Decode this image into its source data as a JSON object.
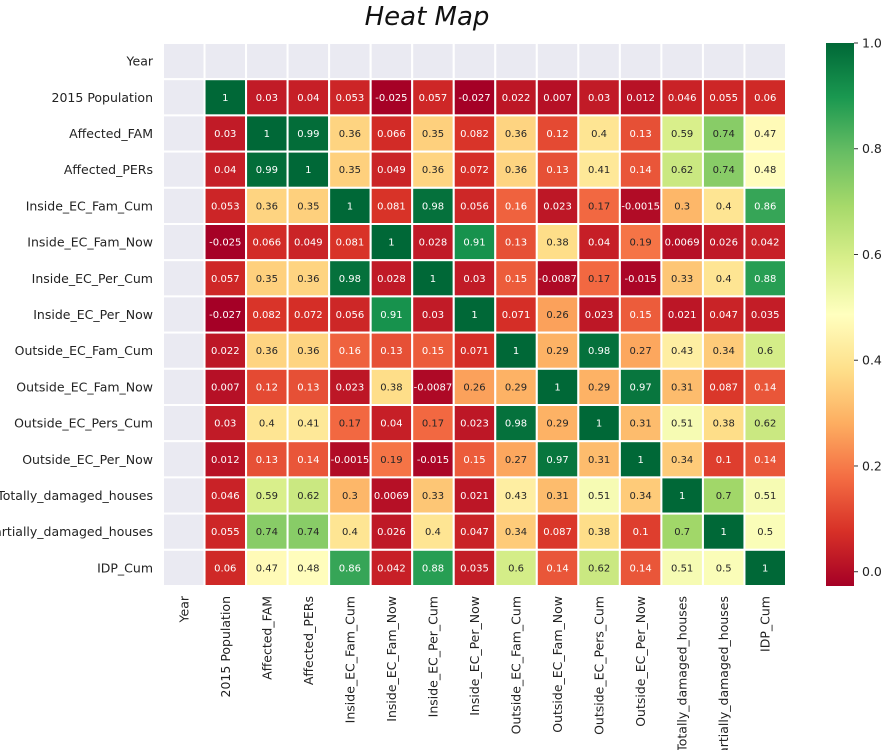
{
  "chart_data": {
    "type": "heatmap",
    "title": "Heat Map",
    "variables": [
      "Year",
      "2015 Population",
      "Affected_FAM",
      "Affected_PERs",
      "Inside_EC_Fam_Cum",
      "Inside_EC_Fam_Now",
      "Inside_EC_Per_Cum",
      "Inside_EC_Per_Now",
      "Outside_EC_Fam_Cum",
      "Outside_EC_Fam_Now",
      "Outside_EC_Pers_Cum",
      "Outside_EC_Per_Now",
      "Totally_damaged_houses",
      "Partially_damaged_houses",
      "IDP_Cum"
    ],
    "matrix": [
      [
        null,
        null,
        null,
        null,
        null,
        null,
        null,
        null,
        null,
        null,
        null,
        null,
        null,
        null,
        null
      ],
      [
        null,
        "1",
        "0.03",
        "0.04",
        "0.053",
        "-0.025",
        "0.057",
        "-0.027",
        "0.022",
        "0.007",
        "0.03",
        "0.012",
        "0.046",
        "0.055",
        "0.06"
      ],
      [
        null,
        "0.03",
        "1",
        "0.99",
        "0.36",
        "0.066",
        "0.35",
        "0.082",
        "0.36",
        "0.12",
        "0.4",
        "0.13",
        "0.59",
        "0.74",
        "0.47"
      ],
      [
        null,
        "0.04",
        "0.99",
        "1",
        "0.35",
        "0.049",
        "0.36",
        "0.072",
        "0.36",
        "0.13",
        "0.41",
        "0.14",
        "0.62",
        "0.74",
        "0.48"
      ],
      [
        null,
        "0.053",
        "0.36",
        "0.35",
        "1",
        "0.081",
        "0.98",
        "0.056",
        "0.16",
        "0.023",
        "0.17",
        "-0.0015",
        "0.3",
        "0.4",
        "0.86"
      ],
      [
        null,
        "-0.025",
        "0.066",
        "0.049",
        "0.081",
        "1",
        "0.028",
        "0.91",
        "0.13",
        "0.38",
        "0.04",
        "0.19",
        "0.0069",
        "0.026",
        "0.042"
      ],
      [
        null,
        "0.057",
        "0.35",
        "0.36",
        "0.98",
        "0.028",
        "1",
        "0.03",
        "0.15",
        "-0.0087",
        "0.17",
        "-0.015",
        "0.33",
        "0.4",
        "0.88"
      ],
      [
        null,
        "-0.027",
        "0.082",
        "0.072",
        "0.056",
        "0.91",
        "0.03",
        "1",
        "0.071",
        "0.26",
        "0.023",
        "0.15",
        "0.021",
        "0.047",
        "0.035"
      ],
      [
        null,
        "0.022",
        "0.36",
        "0.36",
        "0.16",
        "0.13",
        "0.15",
        "0.071",
        "1",
        "0.29",
        "0.98",
        "0.27",
        "0.43",
        "0.34",
        "0.6"
      ],
      [
        null,
        "0.007",
        "0.12",
        "0.13",
        "0.023",
        "0.38",
        "-0.0087",
        "0.26",
        "0.29",
        "1",
        "0.29",
        "0.97",
        "0.31",
        "0.087",
        "0.14"
      ],
      [
        null,
        "0.03",
        "0.4",
        "0.41",
        "0.17",
        "0.04",
        "0.17",
        "0.023",
        "0.98",
        "0.29",
        "1",
        "0.31",
        "0.51",
        "0.38",
        "0.62"
      ],
      [
        null,
        "0.012",
        "0.13",
        "0.14",
        "-0.0015",
        "0.19",
        "-0.015",
        "0.15",
        "0.27",
        "0.97",
        "0.31",
        "1",
        "0.34",
        "0.1",
        "0.14"
      ],
      [
        null,
        "0.046",
        "0.59",
        "0.62",
        "0.3",
        "0.0069",
        "0.33",
        "0.021",
        "0.43",
        "0.31",
        "0.51",
        "0.34",
        "1",
        "0.7",
        "0.51"
      ],
      [
        null,
        "0.055",
        "0.74",
        "0.74",
        "0.4",
        "0.026",
        "0.4",
        "0.047",
        "0.34",
        "0.087",
        "0.38",
        "0.1",
        "0.7",
        "1",
        "0.5"
      ],
      [
        null,
        "0.06",
        "0.47",
        "0.48",
        "0.86",
        "0.042",
        "0.88",
        "0.035",
        "0.6",
        "0.14",
        "0.62",
        "0.14",
        "0.51",
        "0.5",
        "1"
      ]
    ],
    "colormap": "RdYlGn",
    "vmin": -0.027,
    "vmax": 1.0,
    "colorbar_ticks": [
      "1.0",
      "0.8",
      "0.6",
      "0.4",
      "0.2",
      "0.0"
    ],
    "missing_color": "#eaeaf2",
    "grid_line_color": "#ffffff",
    "annotations": true
  }
}
